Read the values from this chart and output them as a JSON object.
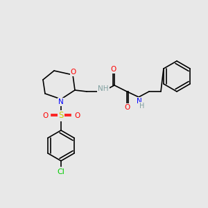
{
  "background_color": "#e8e8e8",
  "fig_width": 3.0,
  "fig_height": 3.0,
  "dpi": 100,
  "atom_colors": {
    "C": "#000000",
    "N": "#0000ff",
    "O": "#ff0000",
    "S": "#cccc00",
    "Cl": "#00cc00",
    "H": "#7f9f9f",
    "NH": "#7f9f9f"
  }
}
